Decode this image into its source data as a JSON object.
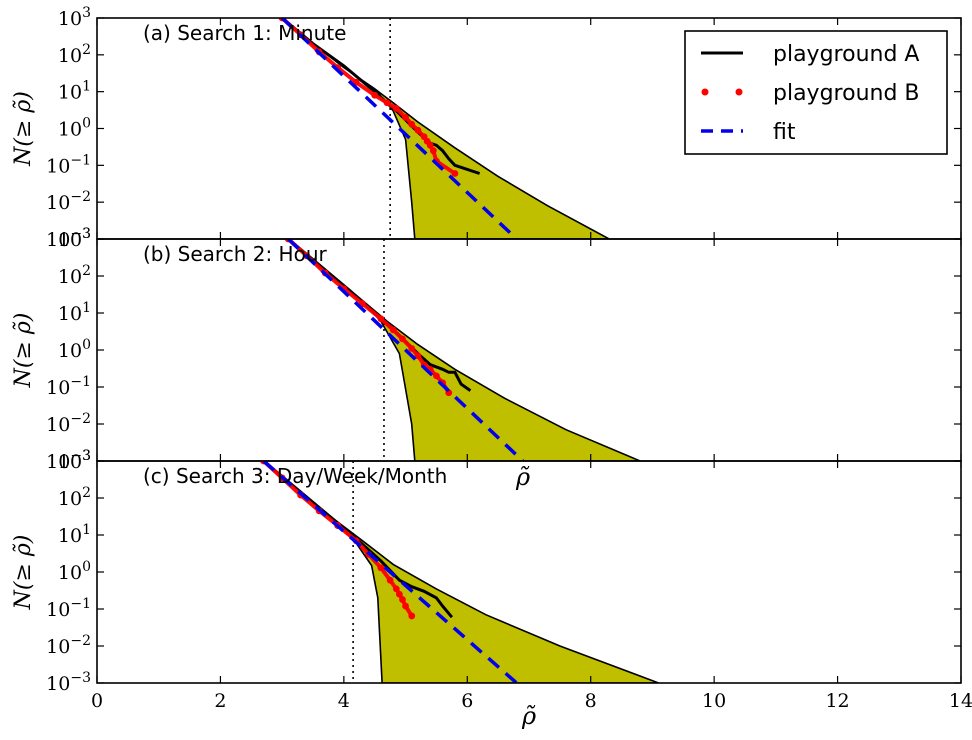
{
  "chart_data": {
    "type": "line",
    "xlabel": "ρ̃",
    "ylabel": "N(≥ ρ̃)",
    "xlim": [
      0,
      14
    ],
    "ylim": [
      0.001,
      1000
    ],
    "yscale": "log",
    "x_ticks": [
      "0",
      "2",
      "4",
      "6",
      "8",
      "10",
      "12",
      "14"
    ],
    "y_ticks": [
      {
        "base": "10",
        "exp": "3"
      },
      {
        "base": "10",
        "exp": "2"
      },
      {
        "base": "10",
        "exp": "1"
      },
      {
        "base": "10",
        "exp": "0"
      },
      {
        "base": "10",
        "exp": "−1"
      },
      {
        "base": "10",
        "exp": "−2"
      },
      {
        "base": "10",
        "exp": "−3"
      }
    ],
    "legend": {
      "placement": "top-right",
      "entries": [
        {
          "label": "playground A",
          "color": "#000000",
          "style": "solid"
        },
        {
          "label": "playground B",
          "color": "#ff0000",
          "style": "dots"
        },
        {
          "label": "fit",
          "color": "#0000ee",
          "style": "dashed"
        }
      ]
    },
    "colors": {
      "band": "#bfbf00",
      "A": "#000000",
      "B": "#ff0000",
      "fit": "#0000ee"
    },
    "panels": [
      {
        "title": "(a) Search 1: Minute",
        "threshold": 4.75,
        "fit": {
          "x": [
            3.0,
            6.8
          ],
          "y": [
            1000,
            0.001
          ]
        },
        "band_upper": {
          "x": [
            3.0,
            3.6,
            4.0,
            4.5,
            4.8,
            5.2,
            5.8,
            6.5,
            7.3,
            8.3
          ],
          "y": [
            1000,
            150,
            45,
            12,
            5,
            1.5,
            0.3,
            0.05,
            0.008,
            0.001
          ]
        },
        "band_lower": {
          "x": [
            3.0,
            3.6,
            4.0,
            4.5,
            4.8,
            5.0,
            5.1,
            5.15
          ],
          "y": [
            1000,
            150,
            45,
            12,
            3,
            0.5,
            0.01,
            0.001
          ]
        },
        "playground_A": {
          "x": [
            3.0,
            3.5,
            4.0,
            4.5,
            4.9,
            5.2,
            5.4,
            5.5,
            5.6,
            5.7,
            5.8,
            6.2
          ],
          "y": [
            1000,
            200,
            50,
            10,
            2.5,
            0.8,
            0.4,
            0.35,
            0.25,
            0.15,
            0.1,
            0.06
          ]
        },
        "playground_B": {
          "x": [
            3.0,
            3.3,
            3.6,
            3.9,
            4.2,
            4.5,
            4.7,
            4.85,
            5.0,
            5.1,
            5.2,
            5.3,
            5.35,
            5.4,
            5.45,
            5.5,
            5.8
          ],
          "y": [
            1000,
            350,
            120,
            45,
            18,
            8,
            5,
            3.5,
            2,
            1.3,
            0.9,
            0.6,
            0.45,
            0.35,
            0.25,
            0.13,
            0.06
          ]
        }
      },
      {
        "title": "(b) Search 2: Hour",
        "threshold": 4.65,
        "fit": {
          "x": [
            3.1,
            6.9
          ],
          "y": [
            1000,
            0.001
          ]
        },
        "band_upper": {
          "x": [
            3.1,
            3.7,
            4.2,
            4.7,
            5.2,
            5.8,
            6.6,
            7.6,
            8.8
          ],
          "y": [
            1000,
            130,
            30,
            6,
            1.4,
            0.3,
            0.05,
            0.007,
            0.001
          ]
        },
        "band_lower": {
          "x": [
            3.1,
            3.7,
            4.2,
            4.6,
            4.9,
            5.1,
            5.15
          ],
          "y": [
            1000,
            130,
            30,
            6,
            0.8,
            0.01,
            0.001
          ]
        },
        "playground_A": {
          "x": [
            3.1,
            3.6,
            4.1,
            4.5,
            4.9,
            5.2,
            5.4,
            5.6,
            5.7,
            5.8,
            5.9,
            6.05
          ],
          "y": [
            1000,
            200,
            40,
            10,
            2.5,
            0.8,
            0.4,
            0.3,
            0.25,
            0.25,
            0.12,
            0.08
          ]
        },
        "playground_B": {
          "x": [
            3.1,
            3.4,
            3.7,
            4.0,
            4.3,
            4.6,
            4.8,
            4.95,
            5.1,
            5.2,
            5.3,
            5.4,
            5.5,
            5.6,
            5.7
          ],
          "y": [
            1000,
            350,
            120,
            45,
            18,
            7,
            3.5,
            2,
            1.1,
            0.7,
            0.4,
            0.3,
            0.2,
            0.13,
            0.07
          ]
        }
      },
      {
        "title": "(c) Search 3: Day/Week/Month",
        "threshold": 4.15,
        "fit": {
          "x": [
            2.7,
            6.8
          ],
          "y": [
            1000,
            0.001
          ]
        },
        "band_upper": {
          "x": [
            2.7,
            3.3,
            3.8,
            4.3,
            4.8,
            5.5,
            6.3,
            7.5,
            9.1
          ],
          "y": [
            1000,
            150,
            30,
            7,
            1.6,
            0.35,
            0.07,
            0.01,
            0.001
          ]
        },
        "band_lower": {
          "x": [
            2.7,
            3.3,
            3.8,
            4.2,
            4.45,
            4.55,
            4.62
          ],
          "y": [
            1000,
            150,
            30,
            6,
            1.5,
            0.2,
            0.001
          ]
        },
        "playground_A": {
          "x": [
            2.7,
            3.2,
            3.7,
            4.2,
            4.6,
            4.9,
            5.1,
            5.3,
            5.5,
            5.6,
            5.75
          ],
          "y": [
            1000,
            200,
            40,
            8,
            2,
            0.6,
            0.4,
            0.3,
            0.2,
            0.12,
            0.06
          ]
        },
        "playground_B": {
          "x": [
            2.7,
            3.0,
            3.3,
            3.6,
            3.9,
            4.2,
            4.4,
            4.6,
            4.75,
            4.85,
            4.9,
            4.95,
            5.0,
            5.1
          ],
          "y": [
            1000,
            350,
            120,
            45,
            18,
            7,
            3,
            1.3,
            0.6,
            0.35,
            0.25,
            0.18,
            0.12,
            0.065
          ]
        }
      }
    ]
  }
}
